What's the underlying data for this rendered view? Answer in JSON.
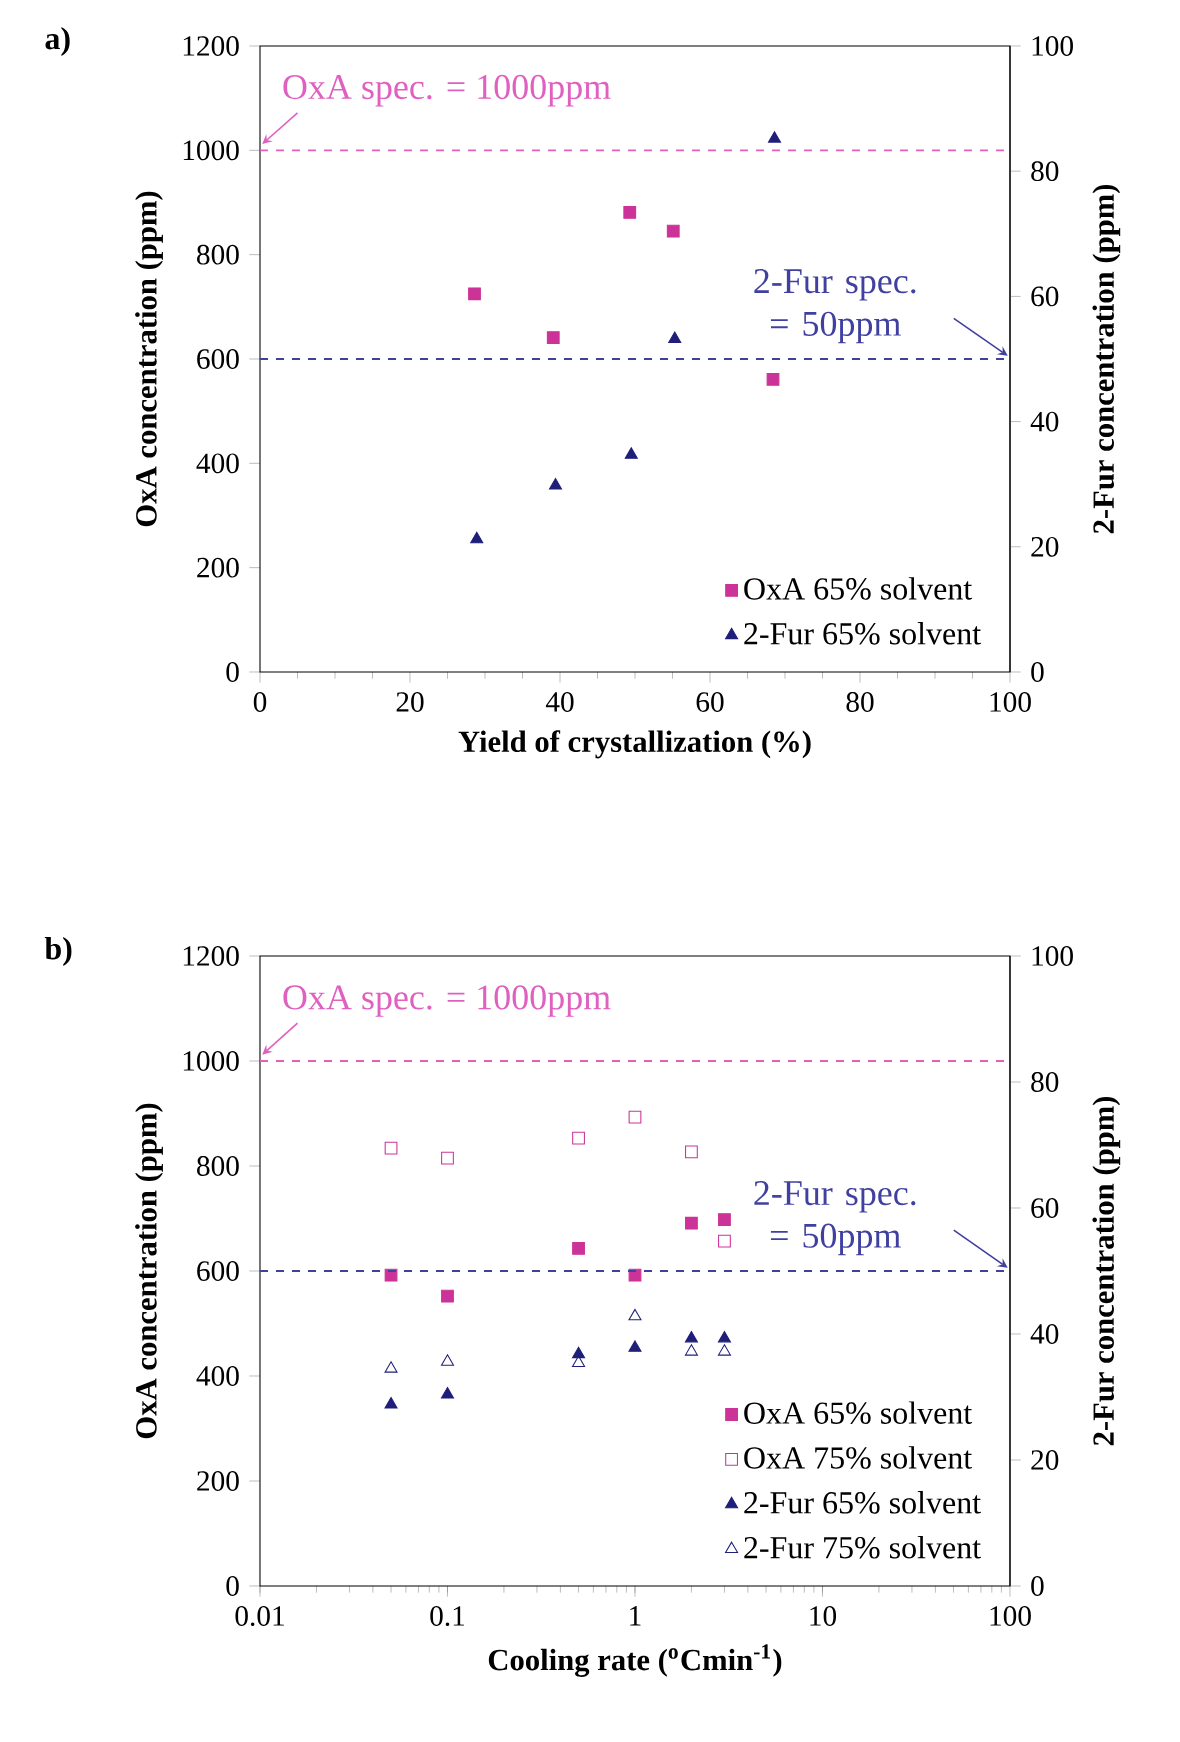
{
  "chart_data": [
    {
      "type": "scatter",
      "title": "a)",
      "xlabel": "Yield of crystallization (%)",
      "ylabel": "OxA concentration (ppm)",
      "y2label": "2-Fur concentration (ppm)",
      "xlim": [
        0,
        100
      ],
      "xticks": [
        0,
        20,
        40,
        60,
        80,
        100
      ],
      "ylim": [
        0,
        1200
      ],
      "yticks": [
        0,
        200,
        400,
        600,
        800,
        1000,
        1200
      ],
      "y2lim": [
        0,
        100
      ],
      "y2ticks": [
        0,
        20,
        40,
        60,
        80,
        100
      ],
      "legend": "bottom right",
      "series": [
        {
          "name": "OxA 65% solvent",
          "color": "#cc3399",
          "marker": "square",
          "x": [
            28.6,
            39.1,
            49.3,
            55.1,
            68.4
          ],
          "values": [
            725,
            641,
            881,
            845,
            561
          ]
        },
        {
          "name": "2-Fur 65% solvent",
          "color": "#1f1f7a",
          "marker": "triangle",
          "axis": "y2",
          "x": [
            28.9,
            39.4,
            49.5,
            55.3,
            68.6
          ],
          "values": [
            21.2,
            29.8,
            34.7,
            53.2,
            85.2
          ]
        }
      ],
      "ref_lines": [
        {
          "axis": "y",
          "value": 1000,
          "label": "OxA spec. = 1000ppm",
          "color": "#e060c0",
          "line_style": "dashed"
        },
        {
          "axis": "y2",
          "value": 50,
          "label": "2-Fur spec. = 50ppm",
          "color": "#4040a0",
          "line_style": "dashed"
        }
      ]
    },
    {
      "type": "scatter",
      "title": "b)",
      "xlabel": "Cooling rate ($^{o}$Cmin$^{-1}$)",
      "ylabel": "OxA concentration (ppm)",
      "y2label": "2-Fur concentration (ppm)",
      "log": "x",
      "xlim": [
        0.01,
        100
      ],
      "xticks": [
        0.01,
        0.1,
        1,
        10,
        100
      ],
      "ylim": [
        0,
        1200
      ],
      "yticks": [
        0,
        200,
        400,
        600,
        800,
        1000,
        1200
      ],
      "y2lim": [
        0,
        100
      ],
      "y2ticks": [
        0,
        20,
        40,
        60,
        80,
        100
      ],
      "legend": "bottom right",
      "series": [
        {
          "name": "OxA 65% solvent",
          "color": "#cc3399",
          "marker": "square",
          "x": [
            0.05,
            0.1,
            0.5,
            1,
            2,
            3
          ],
          "values": [
            592,
            552,
            643,
            592,
            691,
            698
          ]
        },
        {
          "name": "OxA 75% solvent",
          "color": "#cc3399",
          "marker": "square open",
          "x": [
            0.05,
            0.1,
            0.5,
            1,
            2,
            3
          ],
          "values": [
            834,
            815,
            853,
            893,
            827,
            657
          ]
        },
        {
          "name": "2-Fur 65% solvent",
          "color": "#1f1f7a",
          "marker": "triangle",
          "axis": "y2",
          "x": [
            0.05,
            0.1,
            0.5,
            1,
            2,
            3
          ],
          "values": [
            28.8,
            30.4,
            36.8,
            37.8,
            39.3,
            39.3
          ]
        },
        {
          "name": "2-Fur 75% solvent",
          "color": "#1f1f7a",
          "marker": "triangle open",
          "axis": "y2",
          "x": [
            0.05,
            0.1,
            0.5,
            1,
            2,
            3
          ],
          "values": [
            34.5,
            35.6,
            35.4,
            42.8,
            37.2,
            37.2
          ]
        }
      ],
      "ref_lines": [
        {
          "axis": "y",
          "value": 1000,
          "label": "OxA spec. = 1000ppm",
          "color": "#e060c0",
          "line_style": "dashed"
        },
        {
          "axis": "y2",
          "value": 50,
          "label": "2-Fur spec. = 50ppm",
          "color": "#4040a0",
          "line_style": "dashed"
        }
      ]
    }
  ]
}
